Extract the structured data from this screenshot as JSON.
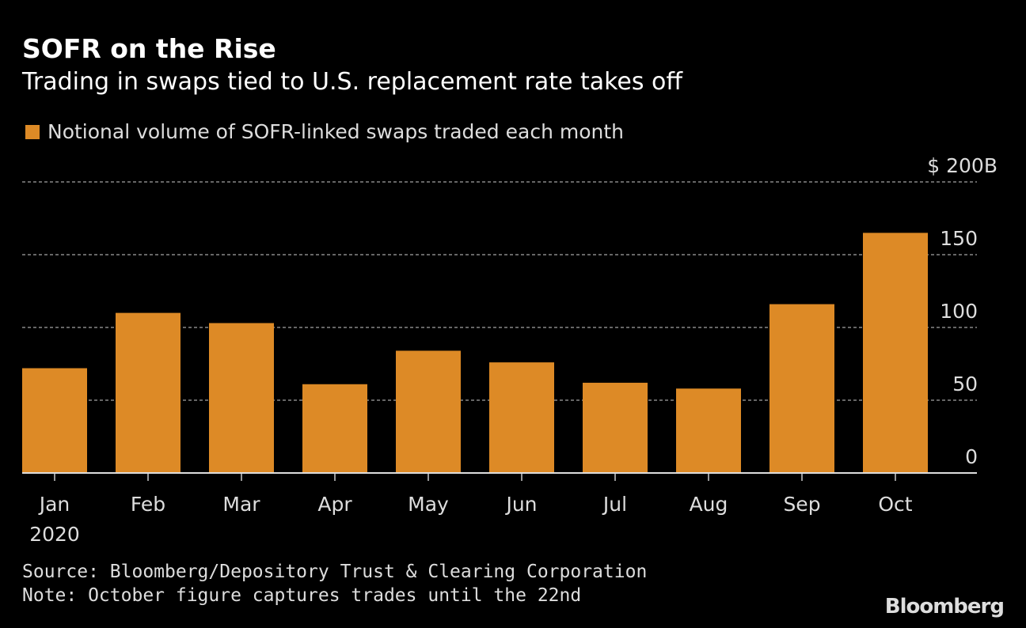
{
  "title": "SOFR on the Rise",
  "subtitle": "Trading in swaps tied to U.S. replacement rate takes off",
  "source": "Source: Bloomberg/Depository Trust & Clearing Corporation",
  "note": "Note: October figure captures trades until the 22nd",
  "logo": "Bloomberg",
  "colors": {
    "bar": "#dd8a26",
    "background": "#000000",
    "grid": "#888888"
  },
  "chart_data": {
    "type": "bar",
    "categories": [
      "Jan",
      "Feb",
      "Mar",
      "Apr",
      "May",
      "Jun",
      "Jul",
      "Aug",
      "Sep",
      "Oct"
    ],
    "year_label": "2020",
    "series": [
      {
        "name": "Notional volume of SOFR-linked swaps traded each month",
        "values": [
          72,
          110,
          103,
          61,
          84,
          76,
          62,
          58,
          116,
          165
        ]
      }
    ],
    "yticks": [
      0,
      50,
      100,
      150,
      200
    ],
    "ytick_labels": [
      "0",
      "50",
      "100",
      "150",
      "$ 200B"
    ],
    "ylim": [
      0,
      200
    ],
    "grid": true,
    "yaxis_position": "right",
    "legend_position": "top-left"
  }
}
